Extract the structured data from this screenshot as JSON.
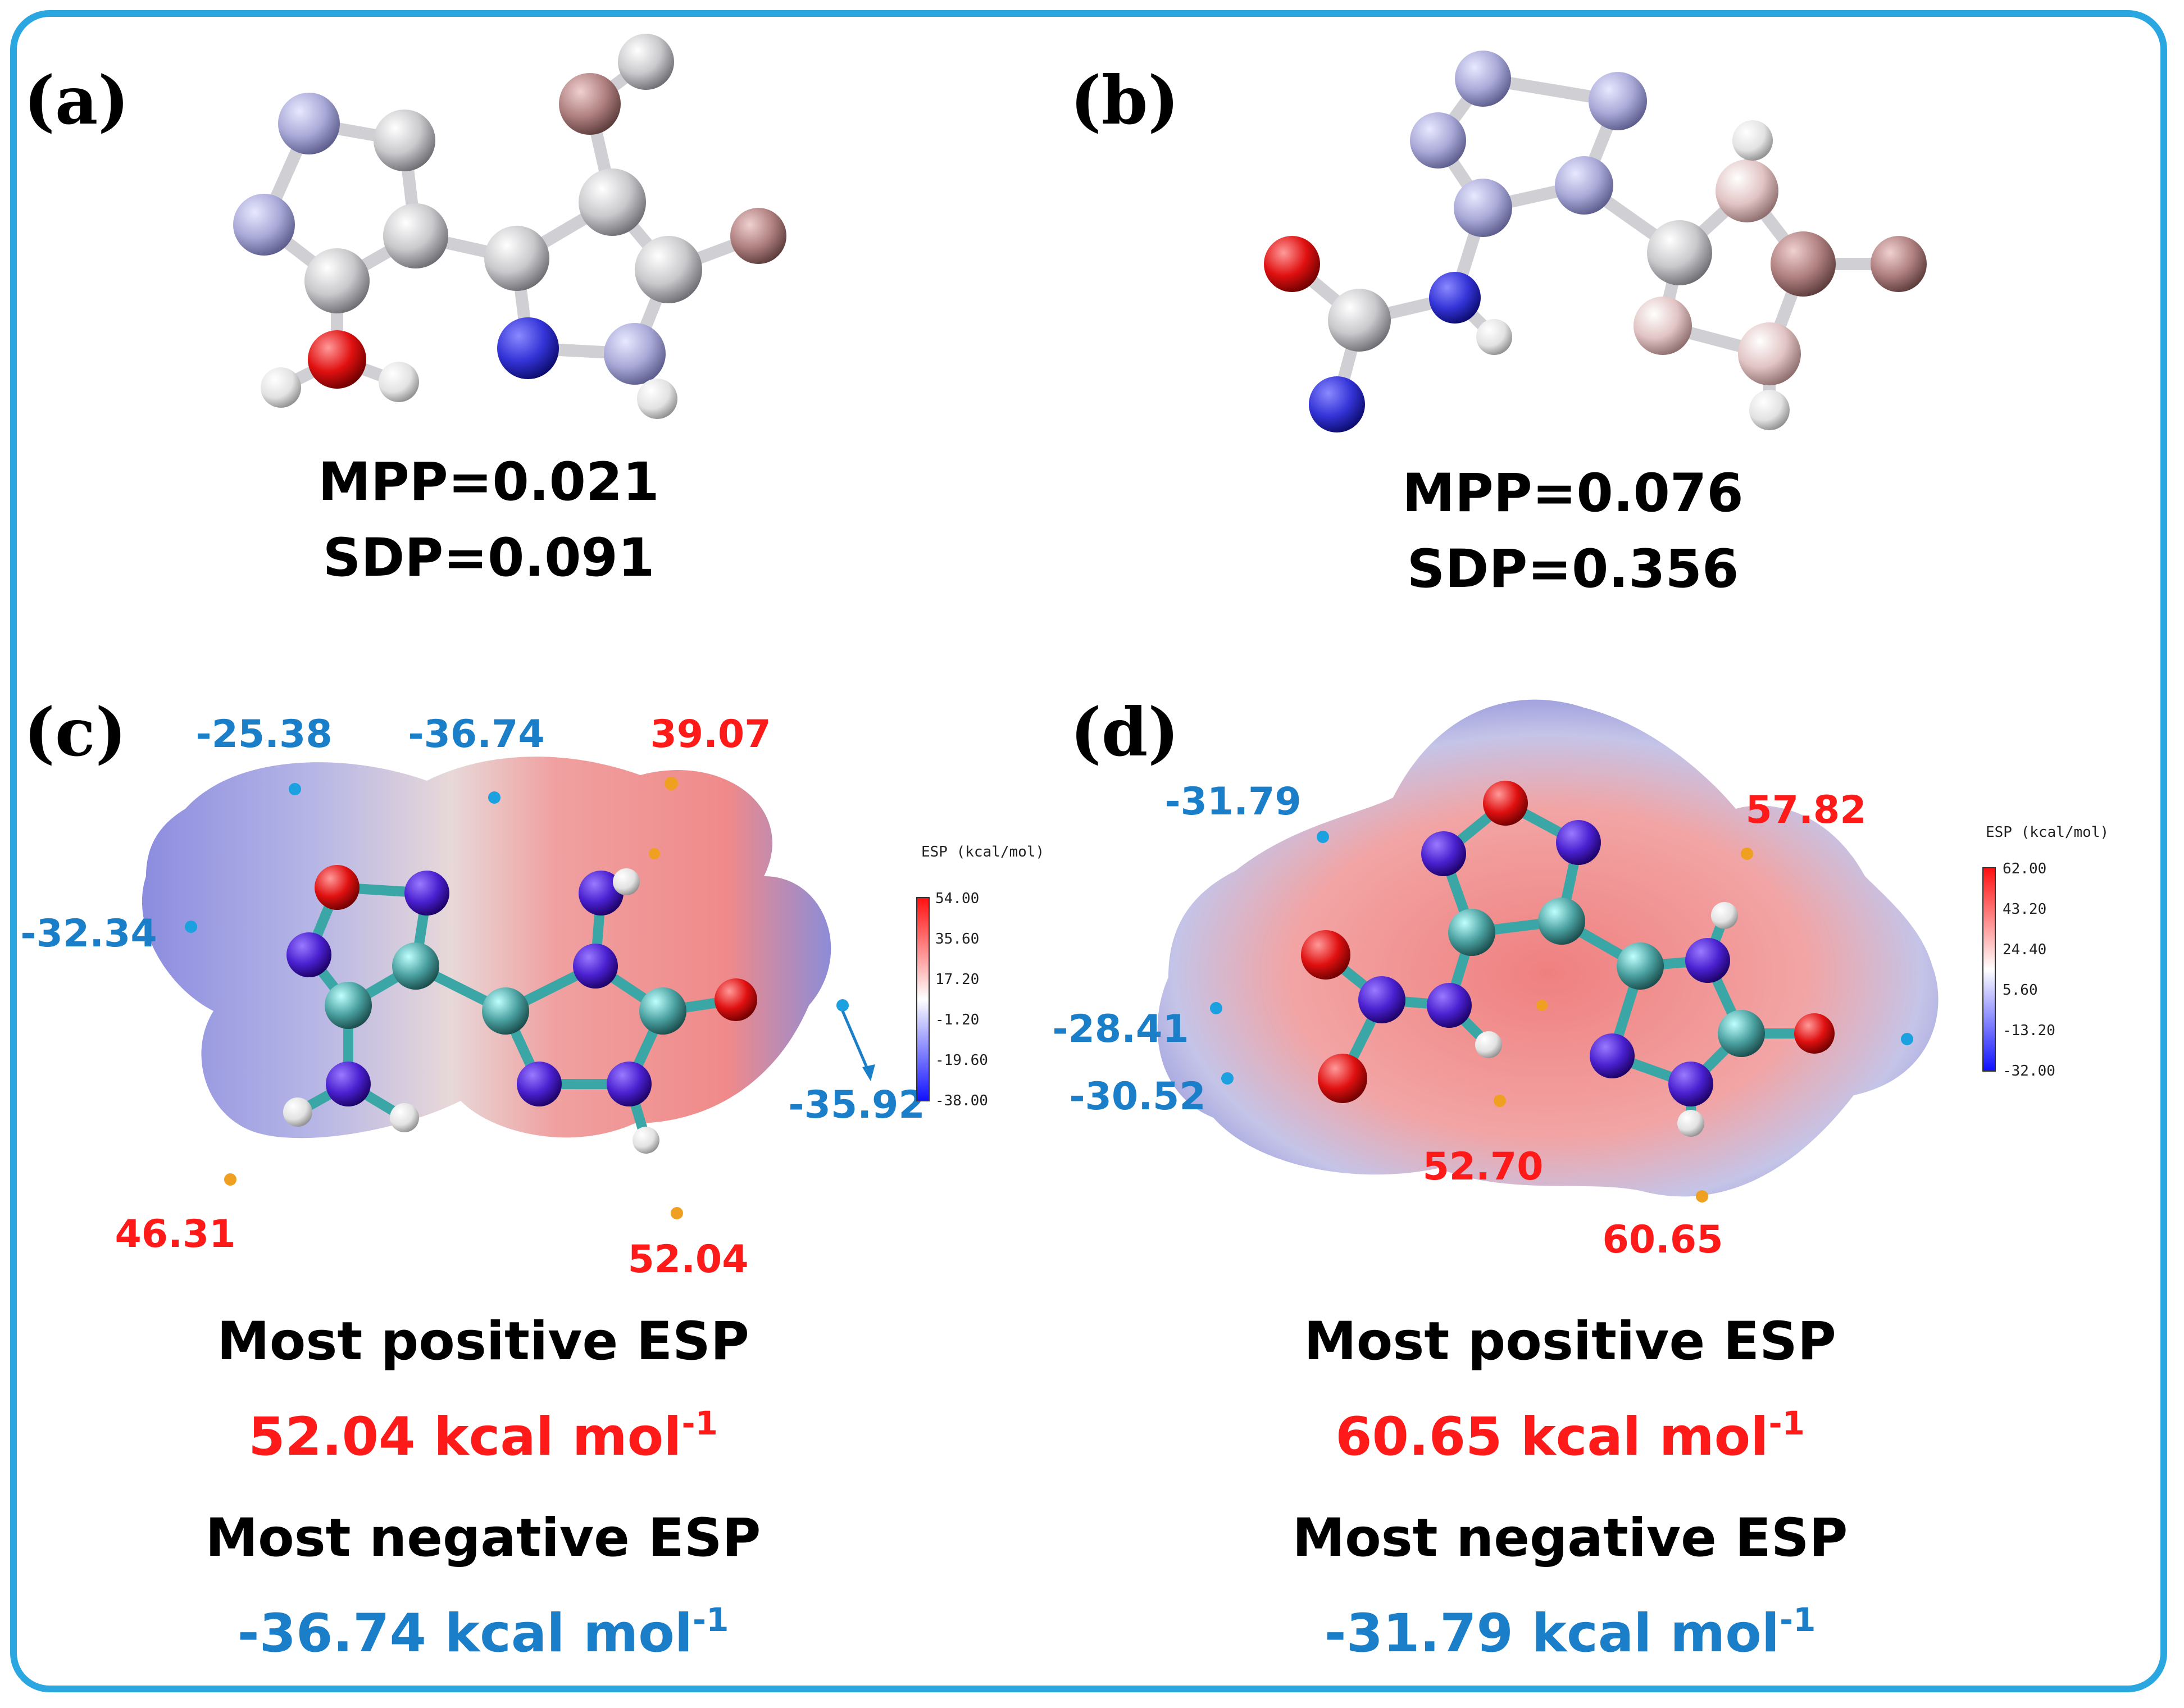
{
  "colors": {
    "frame": "#2aa7e1",
    "positive": "#ff1a1a",
    "negative": "#1a7fc8",
    "black": "#000000"
  },
  "panels": {
    "a": {
      "label": "(a)",
      "mpp": "MPP=0.021",
      "sdp": "SDP=0.091"
    },
    "b": {
      "label": "(b)",
      "mpp": "MPP=0.076",
      "sdp": "SDP=0.356"
    },
    "c": {
      "label": "(c)",
      "colorbar": {
        "title": "ESP (kcal/mol)",
        "ticks": [
          "54.00",
          "35.60",
          "17.20",
          "-1.20",
          "-19.60",
          "-38.00"
        ]
      },
      "neg_values": [
        "-25.38",
        "-36.74",
        "-32.34",
        "-35.92"
      ],
      "pos_values": [
        "39.07",
        "46.31",
        "52.04"
      ],
      "pos_heading": "Most positive ESP",
      "pos_value": "52.04 kcal mol",
      "neg_heading": "Most negative ESP",
      "neg_value": "-36.74 kcal mol",
      "exponent": "-1"
    },
    "d": {
      "label": "(d)",
      "colorbar": {
        "title": "ESP (kcal/mol)",
        "ticks": [
          "62.00",
          "43.20",
          "24.40",
          "5.60",
          "-13.20",
          "-32.00"
        ]
      },
      "neg_values": [
        "-31.79",
        "-28.41",
        "-30.52"
      ],
      "pos_values": [
        "57.82",
        "52.70",
        "60.65"
      ],
      "pos_heading": "Most positive ESP",
      "pos_value": "60.65 kcal mol",
      "neg_heading": "Most negative ESP",
      "neg_value": "-31.79 kcal mol",
      "exponent": "-1"
    }
  }
}
